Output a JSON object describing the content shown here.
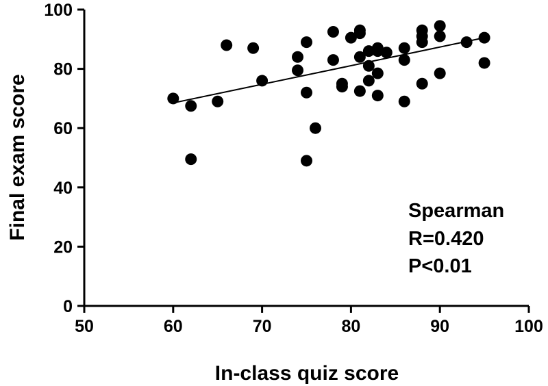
{
  "chart_data": {
    "type": "scatter",
    "title": "",
    "xlabel": "In-class quiz score",
    "ylabel": "Final exam score",
    "xlim": [
      50,
      100
    ],
    "ylim": [
      0,
      100
    ],
    "xticks": [
      50,
      60,
      70,
      80,
      90,
      100
    ],
    "yticks": [
      0,
      20,
      40,
      60,
      80,
      100
    ],
    "grid": false,
    "points": [
      {
        "x": 60,
        "y": 70
      },
      {
        "x": 62,
        "y": 67.5
      },
      {
        "x": 62,
        "y": 49.5
      },
      {
        "x": 65,
        "y": 69
      },
      {
        "x": 66,
        "y": 88
      },
      {
        "x": 69,
        "y": 87
      },
      {
        "x": 70,
        "y": 76
      },
      {
        "x": 74,
        "y": 84
      },
      {
        "x": 74,
        "y": 79.5
      },
      {
        "x": 75,
        "y": 89
      },
      {
        "x": 75,
        "y": 72
      },
      {
        "x": 75,
        "y": 49
      },
      {
        "x": 76,
        "y": 60
      },
      {
        "x": 78,
        "y": 92.5
      },
      {
        "x": 78,
        "y": 83
      },
      {
        "x": 79,
        "y": 75
      },
      {
        "x": 79,
        "y": 74
      },
      {
        "x": 80,
        "y": 90.5
      },
      {
        "x": 81,
        "y": 93
      },
      {
        "x": 81,
        "y": 92
      },
      {
        "x": 81,
        "y": 84
      },
      {
        "x": 81,
        "y": 72.5
      },
      {
        "x": 82,
        "y": 86
      },
      {
        "x": 82,
        "y": 81
      },
      {
        "x": 82,
        "y": 76
      },
      {
        "x": 83,
        "y": 87
      },
      {
        "x": 83,
        "y": 86
      },
      {
        "x": 83,
        "y": 78.5
      },
      {
        "x": 83,
        "y": 71
      },
      {
        "x": 84,
        "y": 85.5
      },
      {
        "x": 86,
        "y": 87
      },
      {
        "x": 86,
        "y": 83
      },
      {
        "x": 86,
        "y": 69
      },
      {
        "x": 88,
        "y": 93
      },
      {
        "x": 88,
        "y": 91
      },
      {
        "x": 88,
        "y": 89
      },
      {
        "x": 88,
        "y": 75
      },
      {
        "x": 90,
        "y": 94.5
      },
      {
        "x": 90,
        "y": 91
      },
      {
        "x": 90,
        "y": 78.5
      },
      {
        "x": 93,
        "y": 89
      },
      {
        "x": 95,
        "y": 90.5
      },
      {
        "x": 95,
        "y": 82
      }
    ],
    "fit_line": {
      "x": [
        60,
        95
      ],
      "y": [
        68.5,
        90.5
      ]
    },
    "annotation": [
      "Spearman",
      "R=0.420",
      "P<0.01"
    ]
  }
}
